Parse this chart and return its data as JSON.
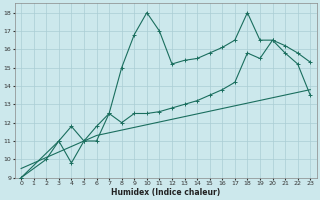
{
  "bg_color": "#cce8ec",
  "grid_color": "#aacdd4",
  "line_color": "#1a6e5e",
  "xlabel": "Humidex (Indice chaleur)",
  "xlim": [
    -0.5,
    23.5
  ],
  "ylim": [
    9,
    18.5
  ],
  "yticks": [
    9,
    10,
    11,
    12,
    13,
    14,
    15,
    16,
    17,
    18
  ],
  "xticks": [
    0,
    1,
    2,
    3,
    4,
    5,
    6,
    7,
    8,
    9,
    10,
    11,
    12,
    13,
    14,
    15,
    16,
    17,
    18,
    19,
    20,
    21,
    22,
    23
  ],
  "line1_x": [
    0,
    2,
    3,
    4,
    5,
    6,
    7,
    8,
    9,
    10,
    11,
    12,
    13,
    14,
    15,
    16,
    17,
    18,
    19,
    20,
    21,
    22,
    23
  ],
  "line1_y": [
    9,
    10,
    11,
    9.8,
    11,
    11,
    12.5,
    15,
    16.8,
    18,
    17,
    15.2,
    15.4,
    15.5,
    15.8,
    16.1,
    16.5,
    18,
    16.5,
    16.5,
    15.8,
    15.2,
    13.5
  ],
  "line2_x": [
    0,
    3,
    4,
    5,
    6,
    7,
    8,
    9,
    10,
    11,
    12,
    13,
    14,
    15,
    16,
    17,
    18,
    19,
    20,
    21,
    22,
    23
  ],
  "line2_y": [
    9,
    11,
    11.8,
    11,
    11.8,
    12.5,
    12.0,
    12.5,
    12.5,
    12.6,
    12.8,
    13.0,
    13.2,
    13.5,
    13.8,
    14.2,
    15.8,
    15.5,
    16.5,
    16.2,
    15.8,
    15.3
  ],
  "line3_x": [
    0,
    6,
    23
  ],
  "line3_y": [
    9.5,
    11.3,
    13.8
  ]
}
